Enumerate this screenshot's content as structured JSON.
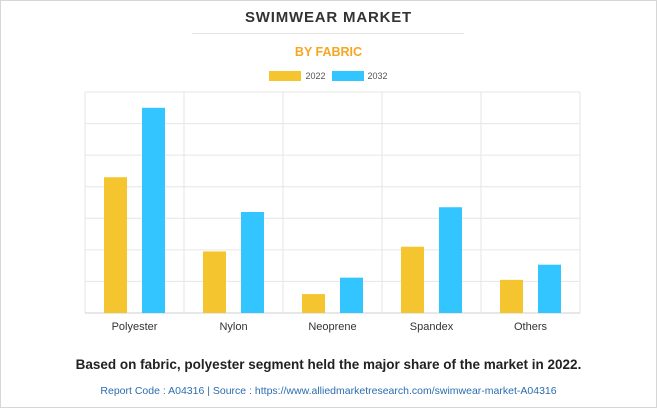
{
  "header": {
    "title": "SWIMWEAR MARKET",
    "subtitle": "BY FABRIC"
  },
  "legend": [
    {
      "label": "2022",
      "color": "#F5C530"
    },
    {
      "label": "2032",
      "color": "#33C5FF"
    }
  ],
  "chart_data": {
    "type": "bar",
    "title": "SWIMWEAR MARKET",
    "subtitle": "BY FABRIC",
    "categories": [
      "Polyester",
      "Nylon",
      "Neoprene",
      "Spandex",
      "Others"
    ],
    "series": [
      {
        "name": "2022",
        "color": "#F5C530",
        "values": [
          4.3,
          1.95,
          0.6,
          2.1,
          1.05
        ]
      },
      {
        "name": "2032",
        "color": "#33C5FF",
        "values": [
          6.5,
          3.2,
          1.12,
          3.35,
          1.53
        ]
      }
    ],
    "ylim": [
      0,
      7
    ],
    "y_tick_count": 7,
    "y_tick_labels_shown": false,
    "grid": true,
    "legend_position": "top-center"
  },
  "caption": "Based on fabric, polyester segment held the major share of the market in 2022.",
  "footer": {
    "text": "Report Code : A04316  |  Source : https://www.alliedmarketresearch.com/swimwear-market-A04316"
  }
}
